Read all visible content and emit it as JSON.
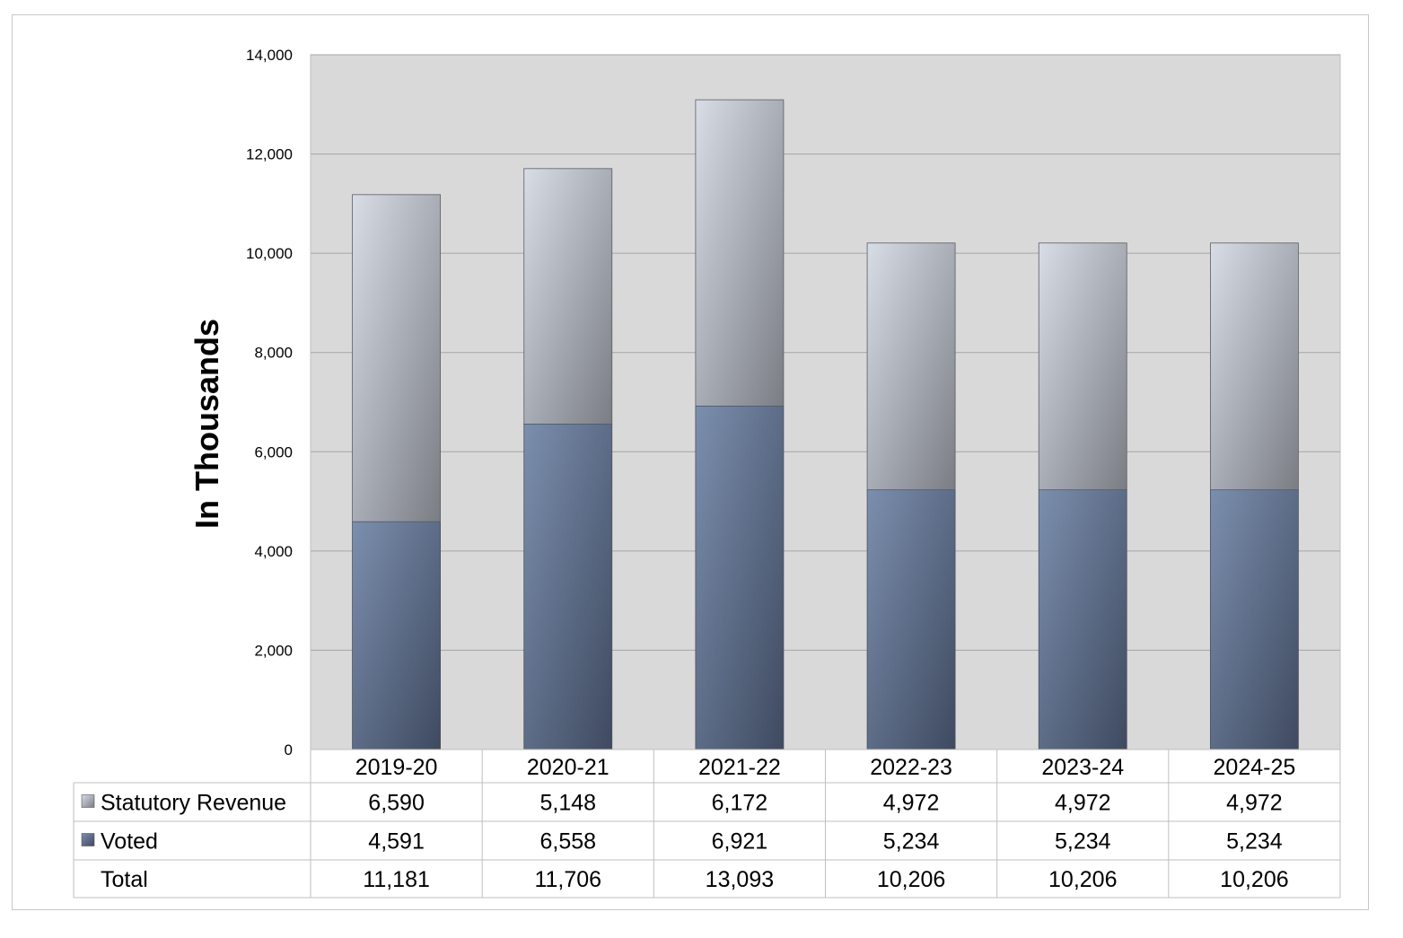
{
  "chart_data": {
    "type": "bar",
    "stacked": true,
    "title": "",
    "xlabel": "",
    "ylabel": "In Thousands",
    "ylim": [
      0,
      14000
    ],
    "yticks": [
      0,
      2000,
      4000,
      6000,
      8000,
      10000,
      12000,
      14000
    ],
    "ytick_labels": [
      "0",
      "2,000",
      "4,000",
      "6,000",
      "8,000",
      "10,000",
      "12,000",
      "14,000"
    ],
    "grid": true,
    "legend": "data-table-left",
    "categories": [
      "2019-20",
      "2020-21",
      "2021-22",
      "2022-23",
      "2023-24",
      "2024-25"
    ],
    "series": [
      {
        "name": "Voted",
        "values": [
          4591,
          6558,
          6921,
          5234,
          5234,
          5234
        ],
        "labels": [
          "4,591",
          "6,558",
          "6,921",
          "5,234",
          "5,234",
          "5,234"
        ],
        "color": "#6d7f9c"
      },
      {
        "name": "Statutory Revenue",
        "values": [
          6590,
          5148,
          6172,
          4972,
          4972,
          4972
        ],
        "labels": [
          "6,590",
          "5,148",
          "6,172",
          "4,972",
          "4,972",
          "4,972"
        ],
        "color": "#b6bcc6"
      }
    ],
    "table": {
      "row_order": [
        "Statutory Revenue",
        "Voted",
        "Total"
      ],
      "total_label": "Total",
      "totals": [
        "11,181",
        "11,706",
        "13,093",
        "10,206",
        "10,206",
        "10,206"
      ]
    },
    "colors": {
      "plot_background": "#d9d9d9",
      "gridline": "#a6a6a6",
      "table_border": "#bfbfbf",
      "voted_light": "#7b8fae",
      "voted_dark": "#3f4a60",
      "statutory_light": "#d8dde6",
      "statutory_dark": "#7a7d84"
    }
  }
}
